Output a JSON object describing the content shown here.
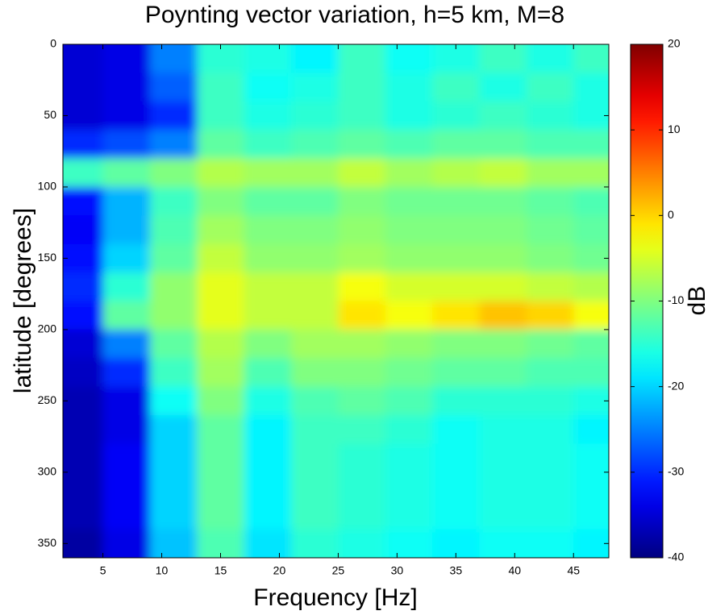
{
  "chart_data": {
    "type": "heatmap",
    "title": "Poynting vector variation, h=5 km, M=8",
    "xlabel": "Frequency [Hz]",
    "ylabel": "latitude [degrees]",
    "colorbar_label": "dB",
    "colormap": "jet",
    "x": [
      3,
      7,
      11,
      15,
      19,
      23,
      27,
      31,
      35,
      39,
      43,
      47
    ],
    "y": [
      10,
      30,
      50,
      70,
      90,
      110,
      130,
      150,
      170,
      190,
      210,
      230,
      250,
      270,
      290,
      310,
      330,
      350
    ],
    "z": [
      [
        -35,
        -34,
        -25,
        -15,
        -16,
        -18,
        -14,
        -17,
        -16,
        -14,
        -16,
        -14
      ],
      [
        -35,
        -34,
        -27,
        -14,
        -17,
        -16,
        -14,
        -16,
        -14,
        -16,
        -14,
        -16
      ],
      [
        -35,
        -34,
        -30,
        -14,
        -16,
        -15,
        -14,
        -16,
        -15,
        -14,
        -15,
        -16
      ],
      [
        -30,
        -28,
        -25,
        -12,
        -14,
        -13,
        -12,
        -13,
        -12,
        -12,
        -13,
        -13
      ],
      [
        -14,
        -12,
        -10,
        -7,
        -8,
        -8,
        -6,
        -8,
        -7,
        -6,
        -8,
        -8
      ],
      [
        -32,
        -22,
        -14,
        -10,
        -12,
        -12,
        -10,
        -11,
        -11,
        -11,
        -12,
        -13
      ],
      [
        -33,
        -22,
        -13,
        -8,
        -10,
        -10,
        -9,
        -10,
        -10,
        -10,
        -11,
        -12
      ],
      [
        -32,
        -20,
        -12,
        -6,
        -9,
        -9,
        -8,
        -9,
        -9,
        -9,
        -10,
        -11
      ],
      [
        -30,
        -15,
        -9,
        -4,
        -6,
        -6,
        -3,
        -5,
        -5,
        -5,
        -6,
        -7
      ],
      [
        -32,
        -12,
        -9,
        -4,
        -6,
        -6,
        -1,
        -3,
        -1,
        1,
        0,
        -3
      ],
      [
        -35,
        -25,
        -12,
        -7,
        -10,
        -8,
        -8,
        -9,
        -10,
        -10,
        -11,
        -12
      ],
      [
        -36,
        -30,
        -14,
        -8,
        -13,
        -10,
        -10,
        -11,
        -12,
        -12,
        -13,
        -13
      ],
      [
        -37,
        -34,
        -17,
        -10,
        -16,
        -13,
        -12,
        -13,
        -15,
        -15,
        -15,
        -16
      ],
      [
        -37,
        -34,
        -20,
        -12,
        -18,
        -14,
        -14,
        -15,
        -17,
        -16,
        -16,
        -18
      ],
      [
        -37,
        -33,
        -20,
        -12,
        -18,
        -14,
        -15,
        -16,
        -17,
        -16,
        -16,
        -17
      ],
      [
        -37,
        -33,
        -20,
        -12,
        -18,
        -14,
        -15,
        -16,
        -17,
        -16,
        -16,
        -17
      ],
      [
        -37,
        -33,
        -20,
        -12,
        -18,
        -14,
        -15,
        -16,
        -17,
        -16,
        -16,
        -17
      ],
      [
        -38,
        -34,
        -21,
        -13,
        -19,
        -15,
        -16,
        -17,
        -18,
        -17,
        -17,
        -18
      ]
    ],
    "xlim": [
      1.6,
      48
    ],
    "ylim": [
      0,
      360
    ],
    "y_reversed": true,
    "xticks": [
      5,
      10,
      15,
      20,
      25,
      30,
      35,
      40,
      45
    ],
    "yticks": [
      0,
      50,
      100,
      150,
      200,
      250,
      300,
      350
    ],
    "clim": [
      -40,
      20
    ],
    "cticks": [
      -40,
      -30,
      -20,
      -10,
      0,
      10,
      20
    ]
  }
}
